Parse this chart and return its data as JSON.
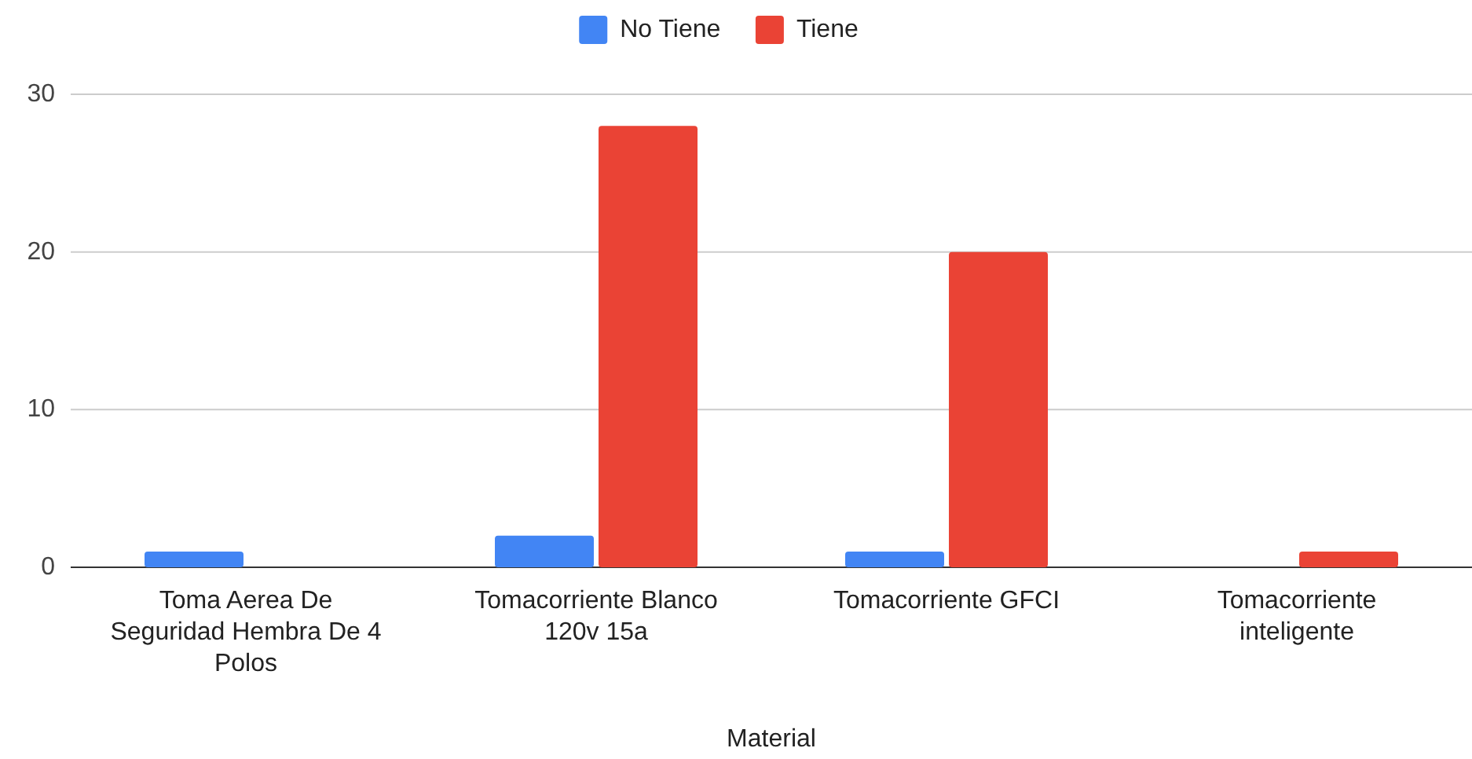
{
  "chart_data": {
    "type": "bar",
    "xlabel": "Material",
    "categories": [
      "Toma Aerea De Seguridad Hembra De 4 Polos",
      "Tomacorriente Blanco 120v 15a",
      "Tomacorriente GFCI",
      "Tomacorriente inteligente"
    ],
    "series": [
      {
        "name": "No Tiene",
        "color": "#4285f4",
        "values": [
          1,
          2,
          1,
          null
        ]
      },
      {
        "name": "Tiene",
        "color": "#ea4335",
        "values": [
          null,
          28,
          20,
          1
        ]
      }
    ],
    "ylim": [
      0,
      30
    ],
    "yticks": [
      0,
      10,
      20,
      30
    ],
    "grid": "y",
    "legend": "top"
  }
}
